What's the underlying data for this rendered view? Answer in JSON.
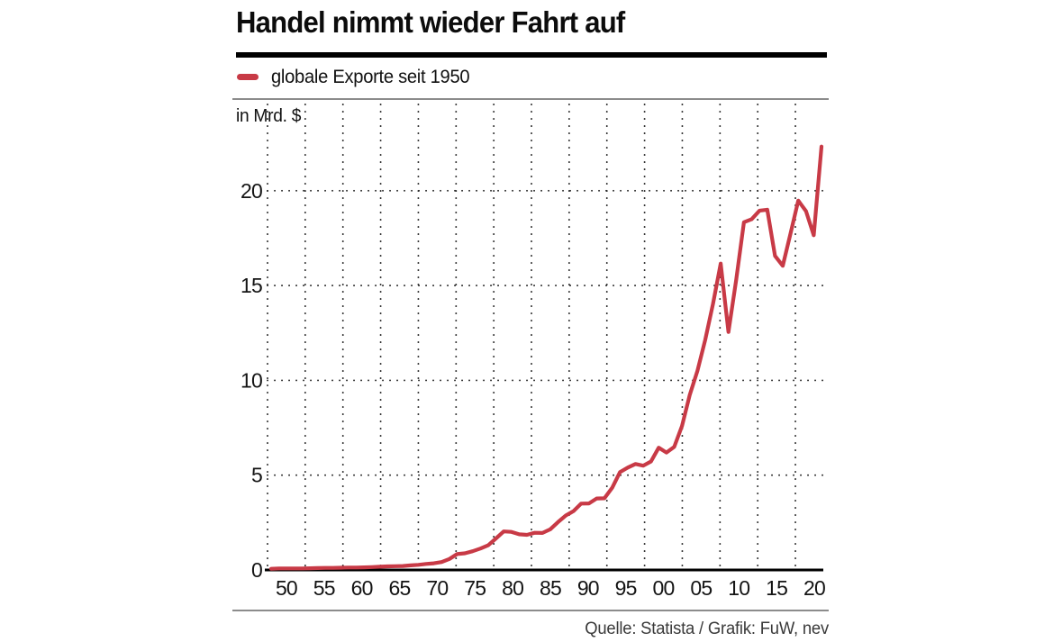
{
  "header": {
    "title": "Handel nimmt wieder Fahrt auf",
    "legend_label": "globale Exporte seit 1950",
    "unit_label": "in Mrd. $"
  },
  "footer": {
    "source": "Quelle: Statista / Grafik: FuW, nev"
  },
  "colors": {
    "line_red": "#c83a46",
    "title_rule": "#000000",
    "separator_gray": "#8c8c8c",
    "grid_dot": "#2b2b2b",
    "text": "#141414"
  },
  "chart_data": {
    "type": "line",
    "title": "Handel nimmt wieder Fahrt auf",
    "legend": [
      "globale Exporte seit 1950"
    ],
    "legend_position": "top-left",
    "ylabel": "in Mrd. $",
    "xlabel": "",
    "grid": "dotted",
    "ylim": [
      0,
      24.5
    ],
    "xlim": [
      1950,
      2024.5
    ],
    "y_ticks": [
      0,
      5,
      10,
      15,
      20
    ],
    "y_tick_labels": [
      "0",
      "5",
      "10",
      "15",
      "20"
    ],
    "x_tick_labels": [
      "50",
      "55",
      "60",
      "65",
      "70",
      "75",
      "80",
      "85",
      "90",
      "95",
      "00",
      "05",
      "10",
      "15",
      "20"
    ],
    "x": [
      1950,
      1951,
      1952,
      1953,
      1954,
      1955,
      1956,
      1957,
      1958,
      1959,
      1960,
      1961,
      1962,
      1963,
      1964,
      1965,
      1966,
      1967,
      1968,
      1969,
      1970,
      1971,
      1972,
      1973,
      1974,
      1975,
      1976,
      1977,
      1978,
      1979,
      1980,
      1981,
      1982,
      1983,
      1984,
      1985,
      1986,
      1987,
      1988,
      1989,
      1990,
      1991,
      1992,
      1993,
      1994,
      1995,
      1996,
      1997,
      1998,
      1999,
      2000,
      2001,
      2002,
      2003,
      2004,
      2005,
      2006,
      2007,
      2008,
      2009,
      2010,
      2011,
      2012,
      2013,
      2014,
      2015,
      2016,
      2017,
      2018,
      2019,
      2020,
      2021
    ],
    "series": [
      {
        "name": "globale Exporte seit 1950",
        "values": [
          0.06,
          0.08,
          0.08,
          0.08,
          0.08,
          0.09,
          0.1,
          0.11,
          0.11,
          0.12,
          0.13,
          0.13,
          0.14,
          0.15,
          0.17,
          0.19,
          0.2,
          0.21,
          0.24,
          0.27,
          0.32,
          0.35,
          0.42,
          0.58,
          0.84,
          0.88,
          0.99,
          1.13,
          1.3,
          1.66,
          2.03,
          2.01,
          1.88,
          1.85,
          1.96,
          1.95,
          2.14,
          2.52,
          2.87,
          3.1,
          3.5,
          3.51,
          3.77,
          3.78,
          4.33,
          5.16,
          5.4,
          5.59,
          5.5,
          5.72,
          6.45,
          6.19,
          6.49,
          7.59,
          9.22,
          10.51,
          12.13,
          14.02,
          16.16,
          12.55,
          15.3,
          18.34,
          18.5,
          18.95,
          19.0,
          16.56,
          16.04,
          17.74,
          19.48,
          18.92,
          17.65,
          22.33
        ]
      }
    ]
  }
}
